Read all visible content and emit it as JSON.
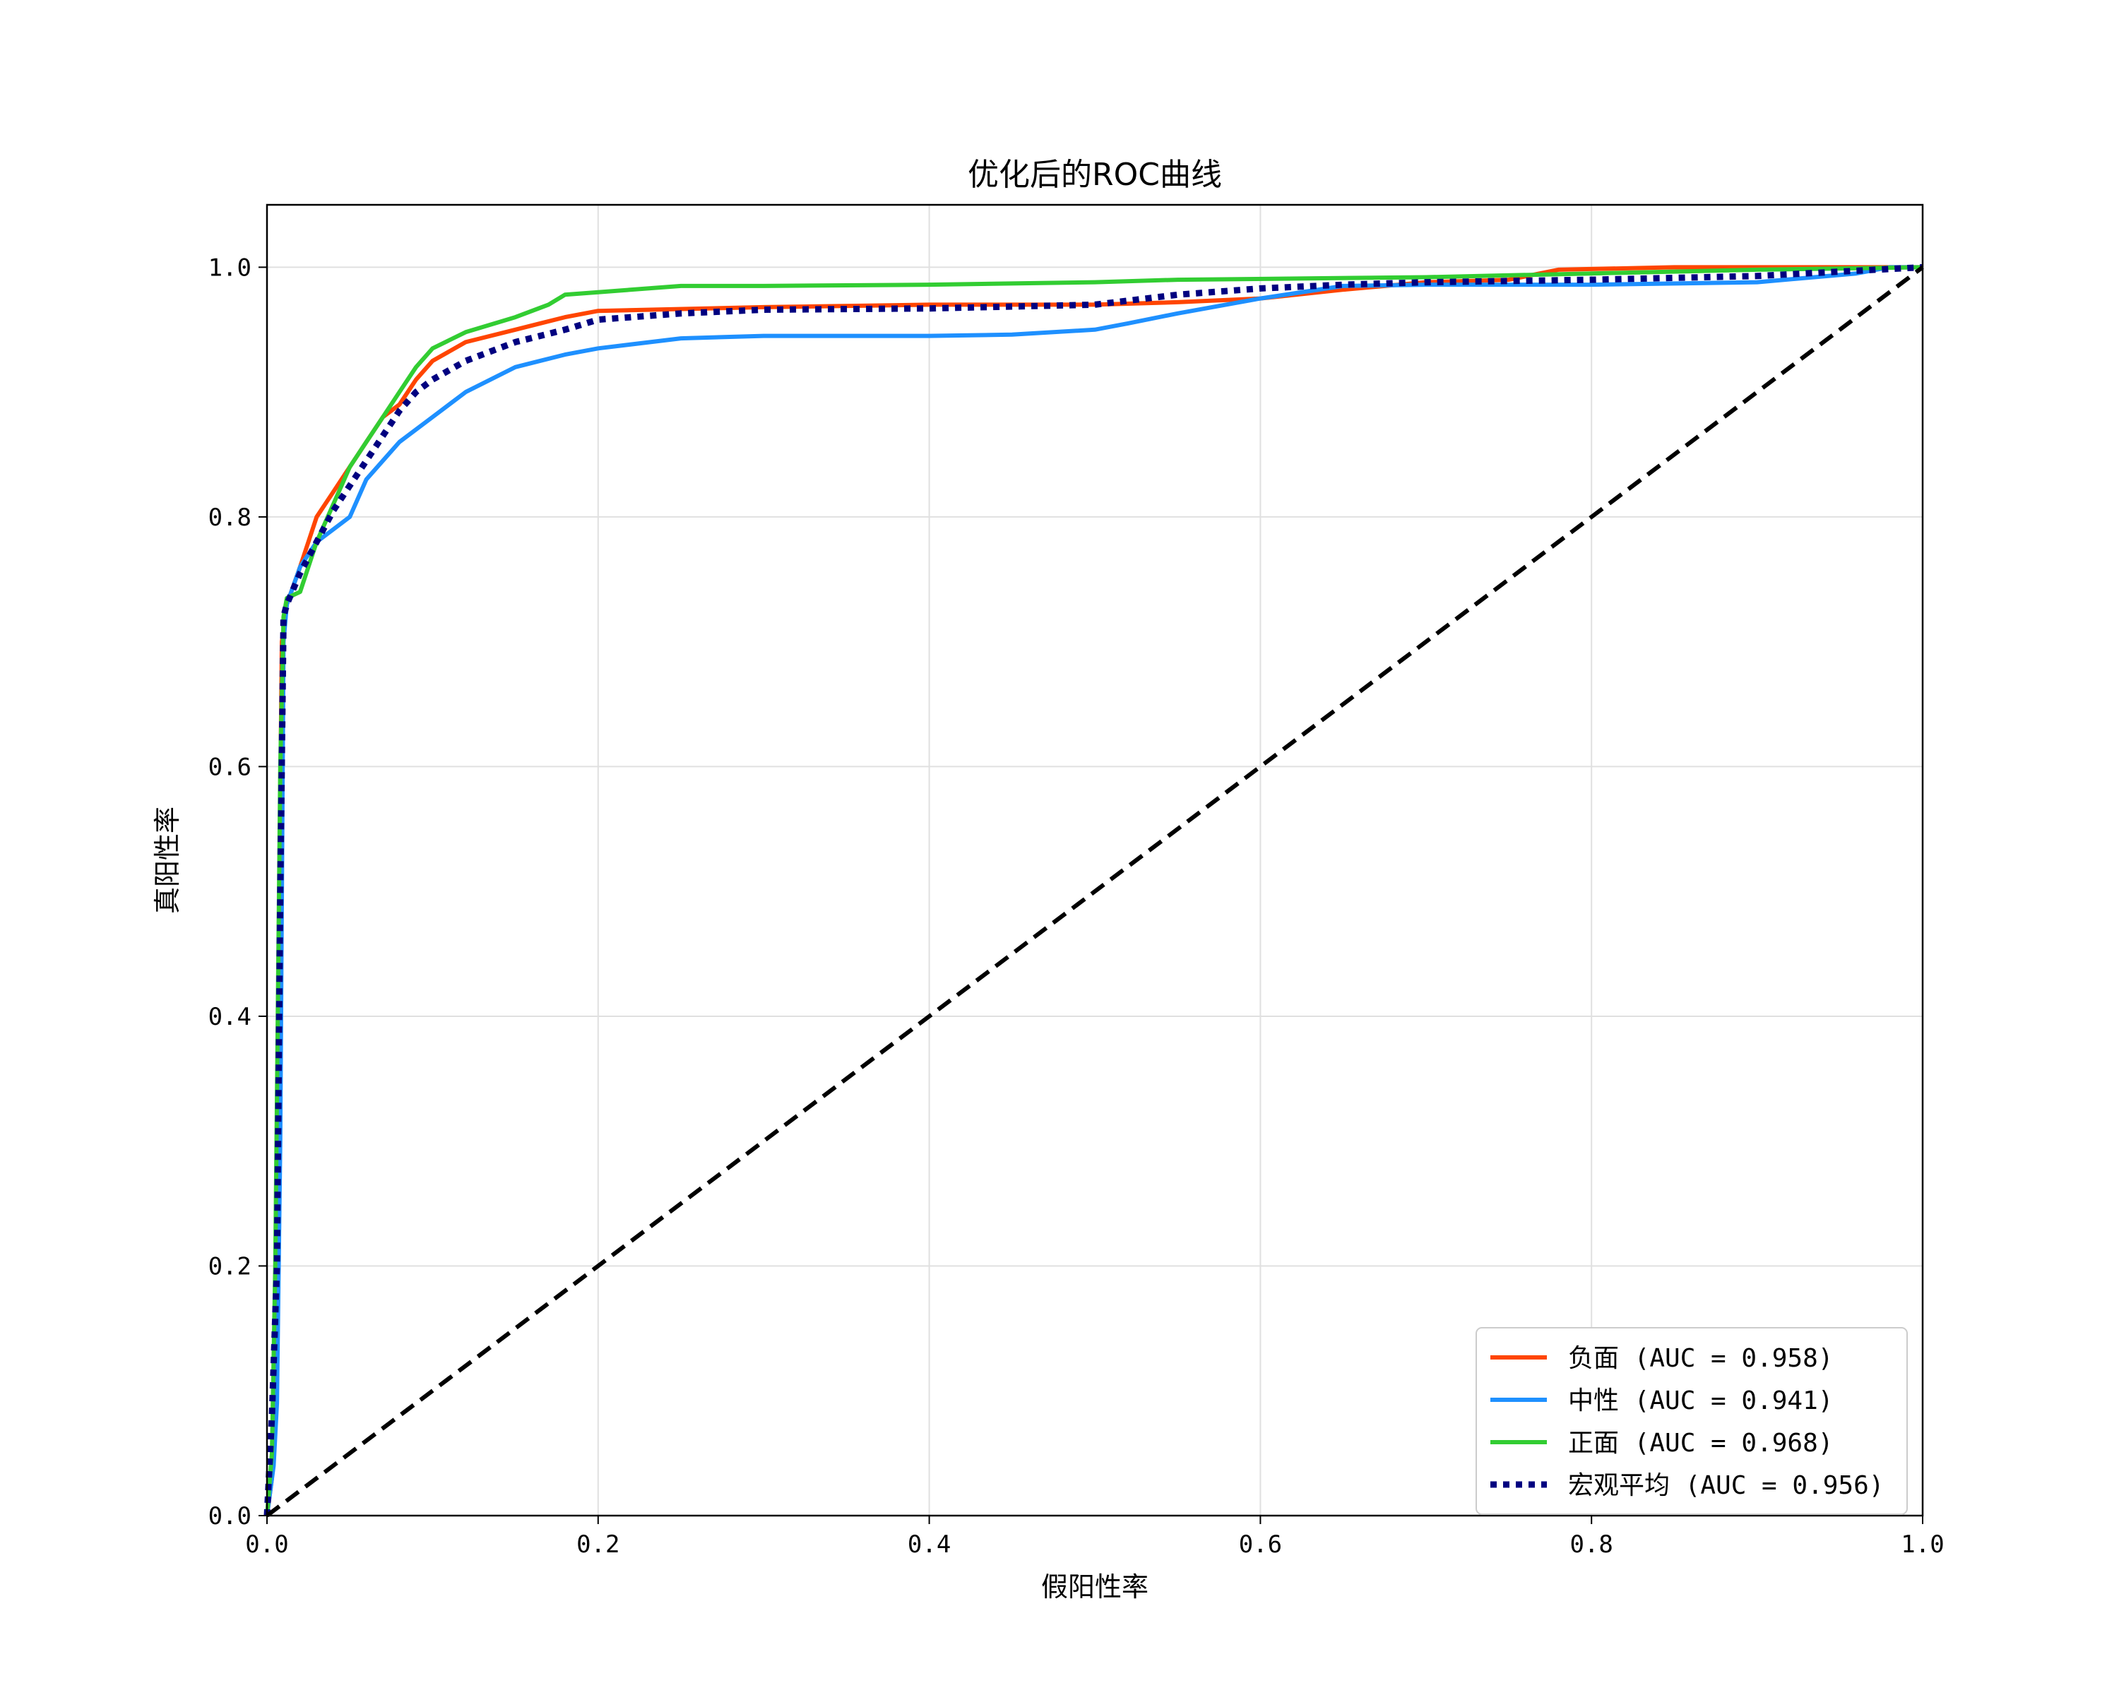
{
  "chart_data": {
    "type": "line",
    "title": "优化后的ROC曲线",
    "xlabel": "假阳性率",
    "ylabel": "真阳性率",
    "xlim": [
      0,
      1
    ],
    "ylim": [
      0,
      1.05
    ],
    "xticks": [
      0.0,
      0.2,
      0.4,
      0.6,
      0.8,
      1.0
    ],
    "yticks": [
      0.0,
      0.2,
      0.4,
      0.6,
      0.8,
      1.0
    ],
    "xtick_labels": [
      "0.0",
      "0.2",
      "0.4",
      "0.6",
      "0.8",
      "1.0"
    ],
    "ytick_labels": [
      "0.0",
      "0.2",
      "0.4",
      "0.6",
      "0.8",
      "1.0"
    ],
    "grid": true,
    "legend_position": "lower-right",
    "series": [
      {
        "name": "负面 (AUC = 0.958)",
        "color": "#ff4500",
        "style": "solid",
        "points": [
          [
            0,
            0
          ],
          [
            0.003,
            0.03
          ],
          [
            0.005,
            0.15
          ],
          [
            0.007,
            0.45
          ],
          [
            0.009,
            0.7
          ],
          [
            0.012,
            0.73
          ],
          [
            0.02,
            0.76
          ],
          [
            0.03,
            0.8
          ],
          [
            0.04,
            0.82
          ],
          [
            0.05,
            0.84
          ],
          [
            0.06,
            0.86
          ],
          [
            0.07,
            0.88
          ],
          [
            0.08,
            0.89
          ],
          [
            0.09,
            0.91
          ],
          [
            0.1,
            0.925
          ],
          [
            0.12,
            0.94
          ],
          [
            0.15,
            0.95
          ],
          [
            0.18,
            0.96
          ],
          [
            0.2,
            0.965
          ],
          [
            0.3,
            0.968
          ],
          [
            0.4,
            0.97
          ],
          [
            0.5,
            0.97
          ],
          [
            0.55,
            0.972
          ],
          [
            0.6,
            0.975
          ],
          [
            0.65,
            0.982
          ],
          [
            0.7,
            0.988
          ],
          [
            0.75,
            0.99
          ],
          [
            0.78,
            0.998
          ],
          [
            0.85,
            1.0
          ],
          [
            1.0,
            1.0
          ]
        ]
      },
      {
        "name": "中性 (AUC = 0.941)",
        "color": "#1e90ff",
        "style": "solid",
        "points": [
          [
            0,
            0
          ],
          [
            0.004,
            0.04
          ],
          [
            0.006,
            0.09
          ],
          [
            0.008,
            0.3
          ],
          [
            0.01,
            0.7
          ],
          [
            0.012,
            0.73
          ],
          [
            0.02,
            0.76
          ],
          [
            0.03,
            0.78
          ],
          [
            0.04,
            0.79
          ],
          [
            0.05,
            0.8
          ],
          [
            0.06,
            0.83
          ],
          [
            0.08,
            0.86
          ],
          [
            0.1,
            0.88
          ],
          [
            0.12,
            0.9
          ],
          [
            0.15,
            0.92
          ],
          [
            0.18,
            0.93
          ],
          [
            0.2,
            0.935
          ],
          [
            0.25,
            0.943
          ],
          [
            0.3,
            0.945
          ],
          [
            0.4,
            0.945
          ],
          [
            0.45,
            0.946
          ],
          [
            0.5,
            0.95
          ],
          [
            0.52,
            0.955
          ],
          [
            0.55,
            0.963
          ],
          [
            0.6,
            0.975
          ],
          [
            0.65,
            0.985
          ],
          [
            0.7,
            0.986
          ],
          [
            0.8,
            0.986
          ],
          [
            0.9,
            0.988
          ],
          [
            0.96,
            0.995
          ],
          [
            0.98,
            1.0
          ],
          [
            1.0,
            1.0
          ]
        ]
      },
      {
        "name": "正面 (AUC = 0.968)",
        "color": "#32cd32",
        "style": "solid",
        "points": [
          [
            0,
            0
          ],
          [
            0.003,
            0.05
          ],
          [
            0.005,
            0.2
          ],
          [
            0.008,
            0.6
          ],
          [
            0.01,
            0.72
          ],
          [
            0.012,
            0.735
          ],
          [
            0.02,
            0.74
          ],
          [
            0.03,
            0.78
          ],
          [
            0.04,
            0.81
          ],
          [
            0.05,
            0.84
          ],
          [
            0.06,
            0.86
          ],
          [
            0.07,
            0.88
          ],
          [
            0.08,
            0.9
          ],
          [
            0.09,
            0.92
          ],
          [
            0.1,
            0.935
          ],
          [
            0.12,
            0.948
          ],
          [
            0.15,
            0.96
          ],
          [
            0.17,
            0.97
          ],
          [
            0.18,
            0.978
          ],
          [
            0.2,
            0.98
          ],
          [
            0.25,
            0.985
          ],
          [
            0.3,
            0.985
          ],
          [
            0.4,
            0.986
          ],
          [
            0.5,
            0.988
          ],
          [
            0.55,
            0.99
          ],
          [
            0.7,
            0.992
          ],
          [
            0.8,
            0.995
          ],
          [
            0.9,
            0.998
          ],
          [
            1.0,
            1.0
          ]
        ]
      },
      {
        "name": "宏观平均 (AUC = 0.956)",
        "color": "#000080",
        "style": "dotted",
        "points": [
          [
            0,
            0
          ],
          [
            0.003,
            0.08
          ],
          [
            0.006,
            0.2
          ],
          [
            0.008,
            0.5
          ],
          [
            0.01,
            0.72
          ],
          [
            0.012,
            0.73
          ],
          [
            0.02,
            0.755
          ],
          [
            0.03,
            0.78
          ],
          [
            0.04,
            0.805
          ],
          [
            0.05,
            0.825
          ],
          [
            0.06,
            0.845
          ],
          [
            0.07,
            0.865
          ],
          [
            0.08,
            0.885
          ],
          [
            0.09,
            0.9
          ],
          [
            0.1,
            0.91
          ],
          [
            0.12,
            0.925
          ],
          [
            0.15,
            0.94
          ],
          [
            0.18,
            0.95
          ],
          [
            0.2,
            0.958
          ],
          [
            0.25,
            0.963
          ],
          [
            0.3,
            0.966
          ],
          [
            0.4,
            0.967
          ],
          [
            0.5,
            0.97
          ],
          [
            0.55,
            0.978
          ],
          [
            0.6,
            0.983
          ],
          [
            0.65,
            0.986
          ],
          [
            0.7,
            0.988
          ],
          [
            0.8,
            0.99
          ],
          [
            0.9,
            0.993
          ],
          [
            1.0,
            1.0
          ]
        ]
      },
      {
        "name": "",
        "color": "#000000",
        "style": "dashed",
        "points": [
          [
            0,
            0
          ],
          [
            1,
            1
          ]
        ]
      }
    ]
  }
}
